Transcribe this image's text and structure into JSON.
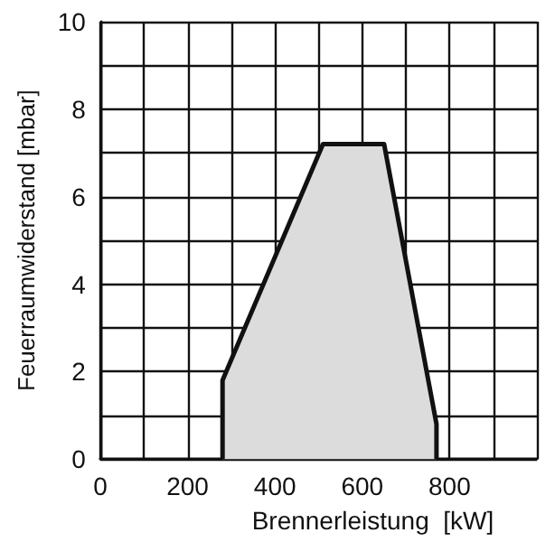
{
  "chart_data": {
    "type": "area",
    "xlabel": "Brennerleistung  [kW]",
    "ylabel": "Feuerraumwiderstand [mbar]",
    "series": [
      {
        "x": [
          280,
          280,
          510,
          650,
          770,
          770
        ],
        "values": [
          0,
          1.8,
          7.2,
          7.2,
          0.8,
          0
        ],
        "color": "#dcdcdc"
      }
    ],
    "xlim": [
      0,
      1000
    ],
    "xticks": [
      0,
      {
        "value": 100,
        "label": null
      },
      200,
      {
        "value": 300,
        "label": null
      },
      400,
      {
        "value": 500,
        "label": null
      },
      600,
      {
        "value": 700,
        "label": null
      },
      800,
      {
        "value": 900,
        "label": null
      },
      {
        "value": 1000,
        "label": null
      }
    ],
    "ylim": [
      0,
      10
    ],
    "yticks": [
      0,
      {
        "value": 1,
        "label": null
      },
      2,
      {
        "value": 3,
        "label": null
      },
      4,
      {
        "value": 5,
        "label": null
      },
      6,
      {
        "value": 7,
        "label": null
      },
      8,
      {
        "value": 9,
        "label": null
      },
      10
    ],
    "grid": true,
    "marker": "none"
  }
}
